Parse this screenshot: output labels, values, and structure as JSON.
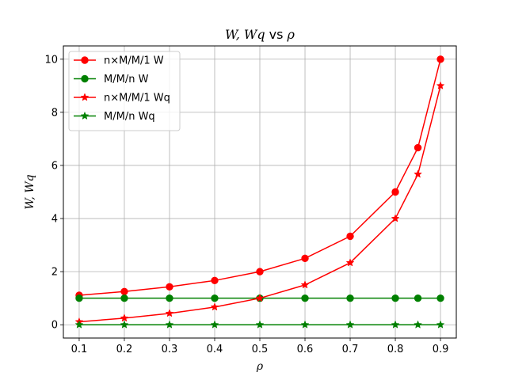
{
  "chart_data": {
    "type": "line",
    "title": "W, Wq vs ρ",
    "title_parts": {
      "a": "W, Wq",
      "mid": " vs ",
      "b": "ρ"
    },
    "xlabel": "ρ",
    "ylabel": "W, Wq",
    "xlim": [
      0.065,
      0.935
    ],
    "ylim": [
      -0.5,
      10.5
    ],
    "xticks": [
      0.1,
      0.2,
      0.3,
      0.4,
      0.5,
      0.6,
      0.7,
      0.8,
      0.9
    ],
    "xtick_labels": [
      "0.1",
      "0.2",
      "0.3",
      "0.4",
      "0.5",
      "0.6",
      "0.7",
      "0.8",
      "0.9"
    ],
    "yticks": [
      0,
      2,
      4,
      6,
      8,
      10
    ],
    "ytick_labels": [
      "0",
      "2",
      "4",
      "6",
      "8",
      "10"
    ],
    "grid": true,
    "legend_position": "top-left",
    "x": [
      0.1,
      0.2,
      0.3,
      0.4,
      0.5,
      0.6,
      0.7,
      0.8,
      0.85,
      0.9
    ],
    "series": [
      {
        "name": "n×M/M/1 W",
        "color": "#ff0000",
        "marker": "circle",
        "values": [
          1.111,
          1.25,
          1.429,
          1.667,
          2.0,
          2.5,
          3.333,
          5.0,
          6.667,
          10.0
        ]
      },
      {
        "name": "M/M/n W",
        "color": "#008000",
        "marker": "circle",
        "values": [
          1.0,
          1.0,
          1.0,
          1.0,
          1.0,
          1.0,
          1.0,
          1.0,
          1.0,
          1.0
        ]
      },
      {
        "name": "n×M/M/1 Wq",
        "color": "#ff0000",
        "marker": "star",
        "values": [
          0.111,
          0.25,
          0.429,
          0.667,
          1.0,
          1.5,
          2.333,
          4.0,
          5.667,
          9.0
        ]
      },
      {
        "name": "M/M/n Wq",
        "color": "#008000",
        "marker": "star",
        "values": [
          0.0,
          0.0,
          0.0,
          0.0,
          0.0,
          0.0,
          0.0,
          0.0,
          0.0,
          0.0
        ]
      }
    ]
  }
}
